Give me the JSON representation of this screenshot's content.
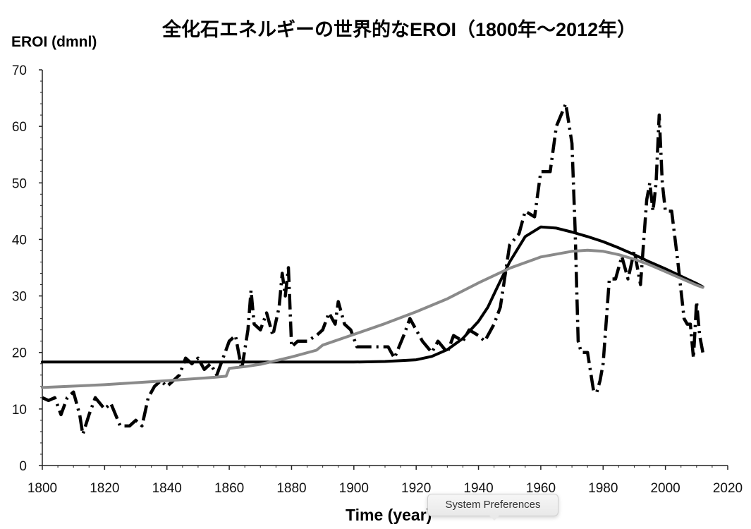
{
  "chart_data": {
    "type": "line",
    "title": "全化石エネルギーの世界的なEROI（1800年～2012年）",
    "ylabel": "EROI (dmnl)",
    "xlabel": "Time (year)",
    "xlim": [
      1800,
      2020
    ],
    "ylim": [
      0,
      70
    ],
    "x_ticks": [
      1800,
      1820,
      1840,
      1860,
      1880,
      1900,
      1920,
      1940,
      1960,
      1980,
      2000,
      2020
    ],
    "y_ticks": [
      0,
      10,
      20,
      30,
      40,
      50,
      60,
      70
    ],
    "grid": false,
    "legend": "none",
    "series": [
      {
        "style": "dash-dot",
        "color": "#000000",
        "x": [
          1800,
          1802,
          1804,
          1806,
          1808,
          1810,
          1812,
          1813,
          1815,
          1817,
          1820,
          1822,
          1825,
          1828,
          1830,
          1832,
          1834,
          1836,
          1838,
          1840,
          1842,
          1844,
          1846,
          1848,
          1850,
          1852,
          1854,
          1856,
          1858,
          1860,
          1862,
          1864,
          1866,
          1867,
          1868,
          1870,
          1872,
          1874,
          1876,
          1877,
          1878,
          1879,
          1880,
          1882,
          1885,
          1888,
          1890,
          1892,
          1894,
          1895,
          1897,
          1899,
          1901,
          1903,
          1905,
          1908,
          1911,
          1913,
          1916,
          1918,
          1920,
          1922,
          1925,
          1927,
          1930,
          1932,
          1935,
          1937,
          1940,
          1942,
          1945,
          1947,
          1950,
          1953,
          1955,
          1958,
          1960,
          1963,
          1965,
          1968,
          1970,
          1971,
          1972,
          1973,
          1975,
          1977,
          1978,
          1979,
          1980,
          1982,
          1984,
          1986,
          1988,
          1990,
          1992,
          1994,
          1995,
          1996,
          1997,
          1998,
          1999,
          2000,
          2002,
          2004,
          2006,
          2007,
          2008,
          2009,
          2010,
          2011,
          2012
        ],
        "y": [
          12,
          11.5,
          12,
          9,
          12,
          13,
          9,
          5.5,
          9,
          12,
          10,
          11,
          7,
          7,
          8,
          7,
          12,
          14,
          15,
          14,
          15,
          16,
          19,
          18,
          19,
          17,
          18,
          16,
          19,
          22,
          23,
          17,
          24,
          31,
          25,
          24,
          27,
          23,
          28,
          34,
          30,
          35,
          21,
          22,
          22,
          23,
          24,
          27,
          25,
          29,
          25,
          24,
          21,
          21,
          21,
          21,
          21,
          19,
          23,
          26,
          24,
          22,
          20,
          22,
          20,
          23,
          22,
          24,
          23,
          22,
          25,
          28,
          39,
          41,
          45,
          44,
          52,
          52,
          60,
          64,
          57,
          42,
          22,
          20,
          20,
          13,
          13,
          15,
          18,
          33,
          33,
          37,
          33,
          38,
          32,
          47,
          50,
          45,
          50,
          62,
          50,
          45,
          45,
          36,
          26,
          25,
          25,
          19,
          29,
          23,
          20
        ]
      },
      {
        "style": "solid",
        "color": "#000000",
        "x": [
          1800,
          1840,
          1880,
          1900,
          1910,
          1920,
          1925,
          1930,
          1935,
          1940,
          1943,
          1946,
          1950,
          1955,
          1960,
          1965,
          1970,
          1975,
          1980,
          1985,
          1990,
          1995,
          2000,
          2005,
          2010,
          2012
        ],
        "y": [
          18.3,
          18.3,
          18.3,
          18.3,
          18.4,
          18.7,
          19.3,
          20.5,
          22.5,
          25.5,
          28,
          31.5,
          36,
          40.5,
          42.2,
          42,
          41.3,
          40.5,
          39.6,
          38.5,
          37.3,
          36,
          34.8,
          33.5,
          32.2,
          31.6
        ]
      },
      {
        "style": "solid",
        "color": "#8a8a8a",
        "x": [
          1800,
          1820,
          1840,
          1855,
          1859,
          1860,
          1865,
          1870,
          1880,
          1888,
          1890,
          1900,
          1910,
          1920,
          1930,
          1940,
          1950,
          1960,
          1970,
          1975,
          1980,
          1985,
          1990,
          1995,
          2000,
          2005,
          2010,
          2012
        ],
        "y": [
          13.8,
          14.3,
          15,
          15.6,
          15.8,
          17.2,
          17.5,
          17.9,
          19.2,
          20.4,
          21.3,
          23.2,
          25.1,
          27.2,
          29.5,
          32.3,
          34.9,
          36.9,
          37.9,
          38.1,
          37.9,
          37.3,
          36.5,
          35.5,
          34.3,
          33.1,
          31.9,
          31.5
        ]
      }
    ]
  },
  "tooltip": {
    "text": "System Preferences"
  }
}
